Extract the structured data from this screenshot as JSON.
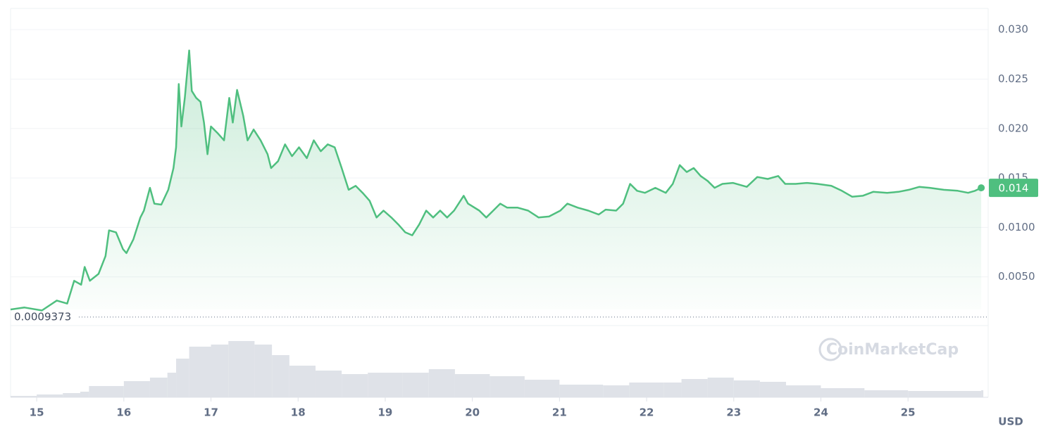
{
  "chart_data": [
    {
      "type": "line",
      "color": "#4fbf7f",
      "x": [
        14.7,
        14.86,
        15.06,
        15.23,
        15.35,
        15.43,
        15.51,
        15.55,
        15.61,
        15.71,
        15.79,
        15.83,
        15.91,
        15.99,
        16.03,
        16.11,
        16.19,
        16.23,
        16.3,
        16.35,
        16.43,
        16.51,
        16.57,
        16.6,
        16.63,
        16.66,
        16.7,
        16.75,
        16.78,
        16.83,
        16.88,
        16.92,
        16.96,
        17.0,
        17.08,
        17.15,
        17.21,
        17.25,
        17.3,
        17.37,
        17.42,
        17.49,
        17.57,
        17.65,
        17.69,
        17.77,
        17.85,
        17.93,
        18.01,
        18.1,
        18.18,
        18.26,
        18.34,
        18.42,
        18.5,
        18.58,
        18.66,
        18.74,
        18.82,
        18.9,
        18.98,
        19.07,
        19.15,
        19.23,
        19.31,
        19.39,
        19.47,
        19.55,
        19.63,
        19.71,
        19.79,
        19.9,
        19.95,
        20.08,
        20.16,
        20.24,
        20.32,
        20.4,
        20.52,
        20.64,
        20.76,
        20.88,
        21.01,
        21.09,
        21.21,
        21.33,
        21.45,
        21.53,
        21.65,
        21.73,
        21.81,
        21.89,
        21.98,
        22.1,
        22.22,
        22.3,
        22.38,
        22.46,
        22.54,
        22.62,
        22.7,
        22.78,
        22.87,
        22.99,
        23.15,
        23.27,
        23.39,
        23.51,
        23.59,
        23.71,
        23.84,
        23.96,
        24.12,
        24.24,
        24.36,
        24.48,
        24.6,
        24.76,
        24.89,
        25.01,
        25.13,
        25.25,
        25.41,
        25.57,
        25.69,
        25.77,
        25.84
      ],
      "values": [
        0.0017,
        0.0019,
        0.0016,
        0.0026,
        0.0023,
        0.0046,
        0.0042,
        0.006,
        0.0046,
        0.0053,
        0.0071,
        0.0097,
        0.0095,
        0.0078,
        0.0074,
        0.0088,
        0.011,
        0.0117,
        0.014,
        0.0124,
        0.0123,
        0.0138,
        0.016,
        0.0181,
        0.0245,
        0.0202,
        0.0231,
        0.0279,
        0.0238,
        0.0231,
        0.0227,
        0.0206,
        0.0174,
        0.0202,
        0.0195,
        0.0188,
        0.0231,
        0.0206,
        0.0239,
        0.0213,
        0.0188,
        0.0199,
        0.0188,
        0.0174,
        0.016,
        0.0167,
        0.0184,
        0.0172,
        0.0181,
        0.017,
        0.0188,
        0.0177,
        0.0184,
        0.0181,
        0.016,
        0.0138,
        0.0142,
        0.0135,
        0.0127,
        0.011,
        0.0117,
        0.011,
        0.0103,
        0.0095,
        0.0092,
        0.0103,
        0.0117,
        0.011,
        0.0117,
        0.011,
        0.0117,
        0.0132,
        0.0124,
        0.0117,
        0.011,
        0.0117,
        0.0124,
        0.012,
        0.012,
        0.0117,
        0.011,
        0.0111,
        0.0117,
        0.0124,
        0.012,
        0.0117,
        0.0113,
        0.0118,
        0.0117,
        0.0124,
        0.0144,
        0.0137,
        0.0135,
        0.014,
        0.0135,
        0.0144,
        0.0163,
        0.0156,
        0.016,
        0.0152,
        0.0147,
        0.014,
        0.0144,
        0.0145,
        0.0141,
        0.0151,
        0.0149,
        0.0152,
        0.0144,
        0.0144,
        0.0145,
        0.0144,
        0.0142,
        0.0137,
        0.0131,
        0.0132,
        0.0136,
        0.0135,
        0.0136,
        0.0138,
        0.0141,
        0.014,
        0.0138,
        0.0137,
        0.0135,
        0.0137,
        0.014
      ],
      "xlim": [
        14.7,
        25.92
      ],
      "xticks": [
        15,
        16,
        17,
        18,
        19,
        20,
        21,
        22,
        23,
        24,
        25
      ],
      "ylim": [
        0,
        0.032
      ],
      "yticks": [
        {
          "value": 0.005,
          "label": "0.0050"
        },
        {
          "value": 0.01,
          "label": "0.0100"
        },
        {
          "value": 0.015,
          "label": "0.015"
        },
        {
          "value": 0.02,
          "label": "0.020"
        },
        {
          "value": 0.025,
          "label": "0.025"
        },
        {
          "value": 0.03,
          "label": "0.030"
        }
      ],
      "grid": true,
      "min_line": 0.0009373,
      "axis_unit": "USD",
      "watermark": "CoinMarketCap"
    },
    {
      "type": "bar",
      "color": "#dfe2e8",
      "x": [
        14.7,
        15.0,
        15.3,
        15.5,
        15.6,
        16.0,
        16.3,
        16.5,
        16.6,
        16.75,
        17.0,
        17.2,
        17.5,
        17.7,
        17.9,
        18.2,
        18.5,
        18.8,
        19.2,
        19.5,
        19.8,
        20.2,
        20.6,
        21.0,
        21.5,
        21.8,
        22.2,
        22.4,
        22.7,
        23.0,
        23.3,
        23.6,
        24.0,
        24.5,
        25.0,
        25.5,
        25.84
      ],
      "values": [
        2,
        4,
        6,
        8,
        16,
        23,
        28,
        35,
        55,
        72,
        75,
        80,
        75,
        60,
        45,
        38,
        33,
        35,
        35,
        40,
        33,
        30,
        25,
        18,
        17,
        21,
        21,
        26,
        28,
        24,
        22,
        17,
        13,
        10,
        9,
        9,
        10
      ],
      "xlim": [
        14.7,
        25.92
      ],
      "ylim": [
        0,
        90
      ]
    }
  ]
}
